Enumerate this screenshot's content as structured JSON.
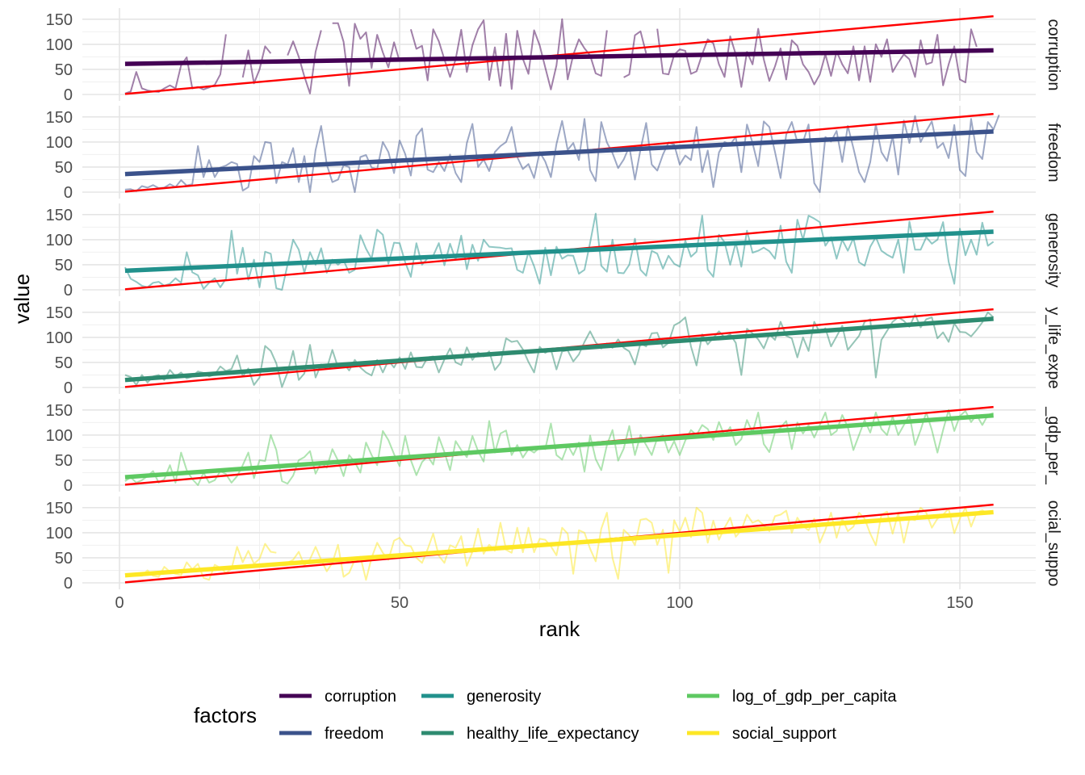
{
  "chart_data": {
    "type": "line",
    "xlabel": "rank",
    "ylabel": "value",
    "xlim": [
      1,
      156
    ],
    "ylim": [
      0,
      156
    ],
    "x_ticks": [
      0,
      50,
      100,
      150
    ],
    "y_ticks": [
      0,
      50,
      100,
      150
    ],
    "grid": true,
    "facets": [
      "corruption",
      "freedom",
      "generosity",
      "healthy_life_expectancy",
      "log_of_gdp_per_capita",
      "social_support"
    ],
    "strip_labels": [
      "corruption",
      "freedom",
      "generosity",
      "y_life_expe",
      "_gdp_per_",
      "ocial_suppo"
    ],
    "reference_line": {
      "color": "#ff0000",
      "slope": 1,
      "intercept": 0
    },
    "legend": {
      "title": "factors",
      "position": "bottom"
    },
    "series": [
      {
        "name": "corruption",
        "color": "#440154",
        "trend": [
          61,
          88
        ],
        "values": [
          2,
          6,
          45,
          12,
          8,
          6,
          5,
          12,
          18,
          12,
          58,
          74,
          12,
          15,
          10,
          14,
          19,
          40,
          120,
          null,
          null,
          34,
          88,
          22,
          50,
          96,
          82,
          null,
          null,
          78,
          106,
          75,
          36,
          2,
          85,
          128,
          null,
          142,
          142,
          105,
          17,
          141,
          111,
          124,
          53,
          119,
          84,
          54,
          104,
          66,
          null,
          130,
          91,
          97,
          28,
          130,
          106,
          70,
          35,
          70,
          129,
          45,
          98,
          130,
          148,
          29,
          94,
          17,
          121,
          11,
          127,
          71,
          41,
          128,
          98,
          54,
          10,
          58,
          150,
          30,
          79,
          110,
          92,
          78,
          42,
          37,
          128,
          null,
          null,
          34,
          40,
          118,
          126,
          82,
          null,
          131,
          42,
          40,
          79,
          90,
          87,
          41,
          46,
          80,
          110,
          102,
          60,
          35,
          116,
          80,
          15,
          85,
          60,
          131,
          70,
          27,
          56,
          92,
          30,
          108,
          97,
          60,
          45,
          20,
          40,
          80,
          37,
          86,
          60,
          42,
          96,
          28,
          96,
          25,
          100,
          75,
          110,
          45,
          64,
          80,
          70,
          35,
          108,
          60,
          64,
          119,
          18,
          60,
          96,
          30,
          24,
          130,
          95
        ]
      },
      {
        "name": "freedom",
        "color": "#3b528b",
        "trend": [
          36,
          121
        ],
        "values": [
          5,
          6,
          2,
          12,
          9,
          14,
          8,
          9,
          16,
          10,
          24,
          13,
          16,
          92,
          30,
          64,
          30,
          49,
          53,
          60,
          56,
          3,
          10,
          72,
          60,
          100,
          98,
          18,
          60,
          55,
          88,
          20,
          72,
          0,
          84,
          132,
          55,
          20,
          25,
          54,
          50,
          0,
          70,
          74,
          49,
          46,
          100,
          80,
          38,
          103,
          76,
          33,
          112,
          127,
          45,
          40,
          60,
          42,
          75,
          38,
          20,
          98,
          136,
          50,
          65,
          42,
          80,
          92,
          100,
          130,
          70,
          46,
          56,
          28,
          80,
          61,
          30,
          96,
          142,
          84,
          98,
          64,
          146,
          44,
          22,
          140,
          99,
          78,
          48,
          65,
          91,
          25,
          85,
          138,
          55,
          43,
          75,
          99,
          95,
          55,
          73,
          64,
          130,
          40,
          83,
          10,
          79,
          100,
          95,
          110,
          40,
          135,
          98,
          52,
          141,
          130,
          80,
          28,
          115,
          140,
          100,
          100,
          135,
          18,
          0,
          110,
          101,
          122,
          60,
          132,
          88,
          40,
          20,
          60,
          135,
          80,
          62,
          112,
          35,
          143,
          98,
          152,
          100,
          122,
          141,
          88,
          98,
          68,
          134,
          44,
          32,
          146,
          80,
          66,
          140,
          125,
          154
        ]
      },
      {
        "name": "generosity",
        "color": "#21918c",
        "trend": [
          38,
          116
        ],
        "values": [
          45,
          22,
          16,
          8,
          5,
          14,
          16,
          8,
          12,
          23,
          14,
          75,
          35,
          29,
          2,
          14,
          23,
          5,
          22,
          118,
          32,
          84,
          20,
          60,
          5,
          76,
          72,
          3,
          0,
          50,
          100,
          80,
          34,
          75,
          50,
          83,
          34,
          60,
          50,
          59,
          34,
          40,
          109,
          82,
          62,
          120,
          110,
          52,
          94,
          93,
          55,
          26,
          93,
          50,
          63,
          68,
          93,
          49,
          92,
          60,
          108,
          41,
          90,
          58,
          100,
          86,
          85,
          84,
          82,
          83,
          40,
          34,
          75,
          47,
          12,
          84,
          29,
          86,
          62,
          69,
          68,
          32,
          40,
          94,
          152,
          48,
          36,
          100,
          34,
          33,
          50,
          102,
          40,
          28,
          78,
          72,
          42,
          68,
          52,
          46,
          98,
          66,
          76,
          148,
          40,
          26,
          110,
          95,
          50,
          94,
          46,
          118,
          74,
          78,
          84,
          77,
          62,
          128,
          56,
          34,
          140,
          100,
          148,
          142,
          135,
          88,
          105,
          62,
          100,
          78,
          103,
          55,
          48,
          86,
          105,
          78,
          70,
          64,
          100,
          34,
          136,
          80,
          80,
          105,
          92,
          100,
          135,
          56,
          12,
          122,
          69,
          100,
          70,
          134,
          88,
          96
        ]
      },
      {
        "name": "healthy_life_expectancy",
        "color": "#2e8b70",
        "trend": [
          15,
          137
        ],
        "values": [
          25,
          21,
          5,
          25,
          10,
          22,
          25,
          15,
          35,
          22,
          30,
          18,
          22,
          32,
          29,
          22,
          26,
          42,
          33,
          37,
          64,
          22,
          38,
          5,
          20,
          83,
          73,
          48,
          1,
          30,
          73,
          15,
          28,
          85,
          20,
          46,
          38,
          75,
          40,
          48,
          34,
          55,
          40,
          30,
          24,
          55,
          30,
          54,
          40,
          60,
          37,
          70,
          41,
          40,
          60,
          62,
          30,
          56,
          78,
          50,
          45,
          80,
          55,
          70,
          62,
          72,
          35,
          49,
          98,
          91,
          93,
          76,
          51,
          30,
          81,
          69,
          76,
          36,
          72,
          74,
          52,
          66,
          91,
          112,
          90,
          78,
          88,
          79,
          96,
          79,
          72,
          46,
          88,
          82,
          108,
          109,
          80,
          89,
          124,
          130,
          140,
          82,
          44,
          106,
          86,
          99,
          112,
          100,
          106,
          89,
          25,
          117,
          108,
          96,
          78,
          106,
          95,
          131,
          103,
          98,
          60,
          100,
          73,
          131,
          110,
          118,
          82,
          102,
          123,
          75,
          89,
          103,
          131,
          136,
          20,
          95,
          113,
          131,
          140,
          133,
          121,
          146,
          120,
          136,
          140,
          98,
          110,
          91,
          128,
          111,
          110,
          102,
          115,
          130,
          150,
          140
        ]
      },
      {
        "name": "log_of_gdp_per_capita",
        "color": "#5ec962",
        "trend": [
          16,
          139
        ],
        "values": [
          8,
          16,
          5,
          10,
          18,
          28,
          5,
          12,
          40,
          5,
          65,
          30,
          12,
          0,
          25,
          5,
          10,
          28,
          22,
          5,
          18,
          40,
          65,
          14,
          50,
          48,
          100,
          70,
          8,
          3,
          19,
          50,
          56,
          68,
          23,
          45,
          35,
          72,
          49,
          18,
          60,
          46,
          25,
          85,
          60,
          40,
          108,
          90,
          62,
          38,
          98,
          50,
          20,
          46,
          58,
          41,
          96,
          66,
          30,
          88,
          70,
          56,
          98,
          68,
          47,
          128,
          65,
          103,
          109,
          60,
          80,
          55,
          72,
          65,
          75,
          72,
          123,
          60,
          51,
          80,
          60,
          85,
          27,
          99,
          52,
          30,
          80,
          110,
          49,
          73,
          118,
          60,
          100,
          80,
          60,
          94,
          100,
          65,
          88,
          60,
          89,
          110,
          100,
          120,
          112,
          90,
          126,
          98,
          116,
          80,
          92,
          130,
          105,
          145,
          82,
          66,
          106,
          115,
          128,
          72,
          125,
          103,
          120,
          95,
          120,
          145,
          100,
          108,
          140,
          116,
          70,
          100,
          130,
          105,
          145,
          112,
          100,
          137,
          100,
          120,
          140,
          80,
          110,
          145,
          110,
          65,
          110,
          150,
          108,
          138,
          148,
          126,
          140,
          120,
          140,
          144
        ]
      },
      {
        "name": "social_support",
        "color": "#fde725",
        "trend": [
          15,
          141
        ],
        "values": [
          18,
          16,
          14,
          14,
          25,
          14,
          12,
          32,
          22,
          18,
          15,
          41,
          27,
          38,
          10,
          6,
          36,
          30,
          20,
          28,
          72,
          41,
          64,
          38,
          48,
          78,
          62,
          60,
          null,
          40,
          46,
          62,
          35,
          47,
          72,
          46,
          23,
          40,
          76,
          12,
          20,
          46,
          52,
          6,
          50,
          80,
          60,
          46,
          84,
          90,
          75,
          73,
          50,
          40,
          67,
          98,
          54,
          40,
          75,
          70,
          93,
          34,
          62,
          108,
          58,
          76,
          64,
          120,
          66,
          60,
          110,
          61,
          110,
          61,
          88,
          86,
          73,
          55,
          110,
          98,
          18,
          105,
          100,
          68,
          43,
          108,
          140,
          50,
          8,
          106,
          95,
          75,
          126,
          128,
          120,
          76,
          106,
          20,
          125,
          102,
          130,
          91,
          150,
          140,
          80,
          124,
          86,
          110,
          130,
          92,
          105,
          136,
          120,
          125,
          115,
          103,
          133,
          136,
          144,
          100,
          130,
          113,
          105,
          128,
          80,
          106,
          140,
          90,
          128,
          103,
          112,
          140,
          128,
          98,
          75,
          136,
          142,
          98,
          140,
          80,
          128,
          125,
          150,
          140,
          110,
          128,
          136,
          148,
          99,
          128,
          150,
          112,
          140,
          145,
          138
        ]
      }
    ]
  }
}
